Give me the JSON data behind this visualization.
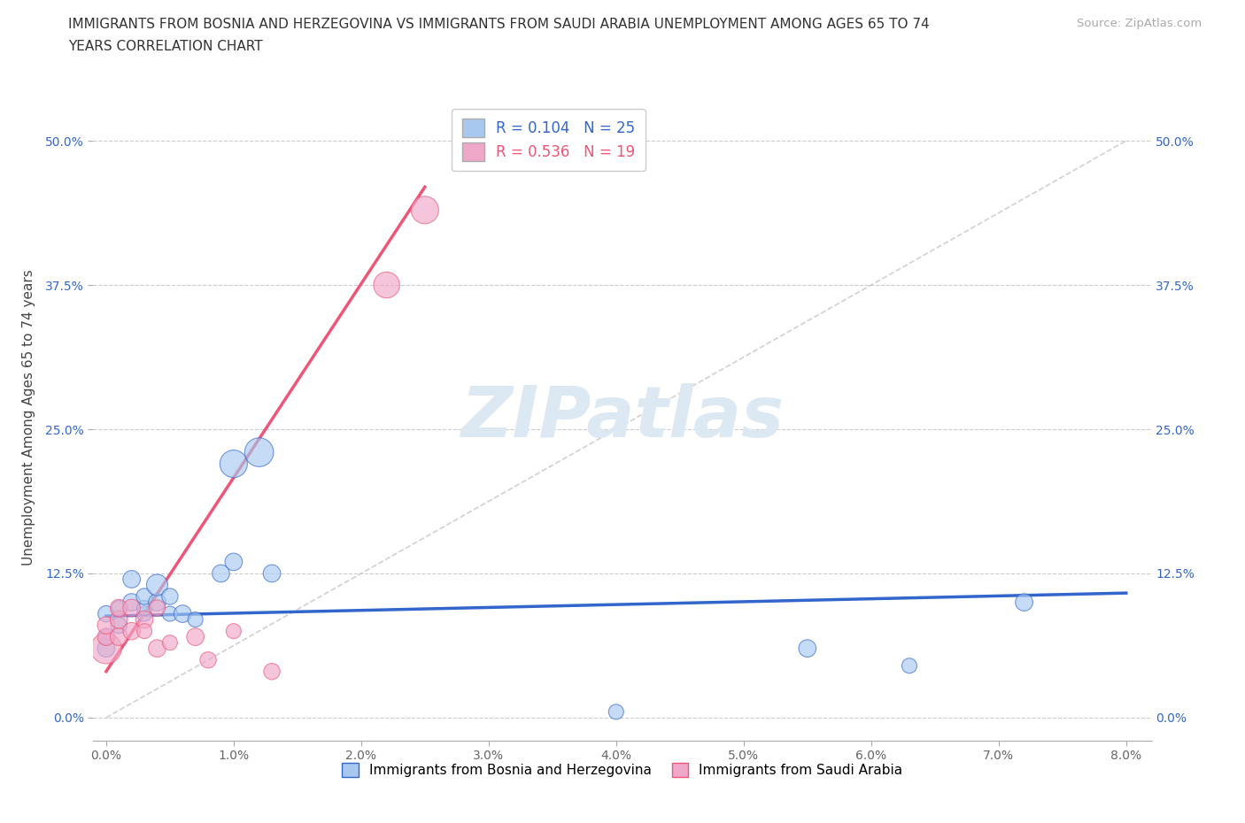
{
  "title_line1": "IMMIGRANTS FROM BOSNIA AND HERZEGOVINA VS IMMIGRANTS FROM SAUDI ARABIA UNEMPLOYMENT AMONG AGES 65 TO 74",
  "title_line2": "YEARS CORRELATION CHART",
  "source": "Source: ZipAtlas.com",
  "ylabel": "Unemployment Among Ages 65 to 74 years",
  "xlim": [
    -0.001,
    0.082
  ],
  "ylim": [
    -0.02,
    0.54
  ],
  "xticks": [
    0.0,
    0.01,
    0.02,
    0.03,
    0.04,
    0.05,
    0.06,
    0.07,
    0.08
  ],
  "yticks": [
    0.0,
    0.125,
    0.25,
    0.375,
    0.5
  ],
  "ytick_labels": [
    "0.0%",
    "12.5%",
    "25.0%",
    "37.5%",
    "50.0%"
  ],
  "xtick_labels": [
    "0.0%",
    "1.0%",
    "2.0%",
    "3.0%",
    "4.0%",
    "5.0%",
    "6.0%",
    "7.0%",
    "8.0%"
  ],
  "legend_r1": "R = 0.104",
  "legend_n1": "N = 25",
  "legend_r2": "R = 0.536",
  "legend_n2": "N = 19",
  "color_bosnia": "#a8c8f0",
  "color_saudi": "#f0a8c8",
  "color_line_bosnia": "#3366cc",
  "color_line_saudi": "#ee5577",
  "color_diag": "#cccccc",
  "watermark": "ZIPatlas",
  "legend_label_bosnia": "Immigrants from Bosnia and Herzegovina",
  "legend_label_saudi": "Immigrants from Saudi Arabia",
  "bosnia_x": [
    0.0,
    0.0,
    0.0,
    0.001,
    0.001,
    0.002,
    0.002,
    0.003,
    0.003,
    0.003,
    0.004,
    0.004,
    0.005,
    0.005,
    0.006,
    0.007,
    0.009,
    0.01,
    0.01,
    0.012,
    0.013,
    0.04,
    0.055,
    0.063,
    0.072
  ],
  "bosnia_y": [
    0.06,
    0.07,
    0.09,
    0.08,
    0.095,
    0.1,
    0.12,
    0.09,
    0.095,
    0.105,
    0.1,
    0.115,
    0.09,
    0.105,
    0.09,
    0.085,
    0.125,
    0.135,
    0.22,
    0.23,
    0.125,
    0.005,
    0.06,
    0.045,
    0.1
  ],
  "bosnia_sizes": [
    80,
    60,
    70,
    70,
    60,
    80,
    80,
    60,
    60,
    70,
    80,
    120,
    60,
    70,
    80,
    60,
    80,
    80,
    200,
    220,
    80,
    60,
    80,
    60,
    80
  ],
  "saudi_x": [
    0.0,
    0.0,
    0.0,
    0.001,
    0.001,
    0.001,
    0.002,
    0.002,
    0.003,
    0.003,
    0.004,
    0.004,
    0.005,
    0.007,
    0.008,
    0.01,
    0.013,
    0.022,
    0.025
  ],
  "saudi_y": [
    0.06,
    0.07,
    0.08,
    0.07,
    0.085,
    0.095,
    0.075,
    0.095,
    0.085,
    0.075,
    0.06,
    0.095,
    0.065,
    0.07,
    0.05,
    0.075,
    0.04,
    0.375,
    0.44
  ],
  "saudi_sizes": [
    250,
    80,
    80,
    80,
    80,
    80,
    80,
    80,
    80,
    60,
    80,
    70,
    60,
    80,
    70,
    60,
    70,
    180,
    200
  ]
}
